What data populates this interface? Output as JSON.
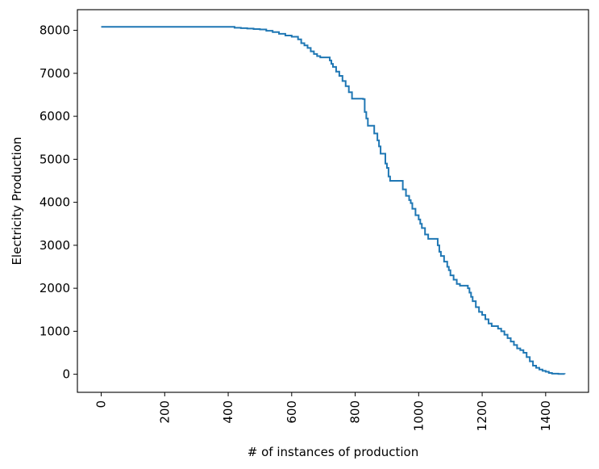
{
  "chart_data": {
    "type": "line",
    "title": "",
    "xlabel": "# of instances of production",
    "ylabel": "Electricity Production",
    "xlim": [
      -75,
      1535
    ],
    "ylim": [
      -420,
      8480
    ],
    "xticks": [
      0,
      200,
      400,
      600,
      800,
      1000,
      1200,
      1400
    ],
    "yticks": [
      0,
      1000,
      2000,
      3000,
      4000,
      5000,
      6000,
      7000,
      8000
    ],
    "x_tick_rotation": 90,
    "grid": false,
    "legend": "none",
    "series": [
      {
        "color": "#1f77b4",
        "style": "step",
        "x": [
          0,
          380,
          420,
          440,
          460,
          480,
          500,
          520,
          540,
          560,
          580,
          600,
          610,
          620,
          630,
          640,
          650,
          660,
          670,
          680,
          690,
          700,
          710,
          720,
          725,
          730,
          740,
          750,
          760,
          770,
          780,
          790,
          800,
          810,
          820,
          825,
          830,
          835,
          840,
          845,
          850,
          860,
          870,
          875,
          880,
          890,
          895,
          900,
          905,
          910,
          920,
          930,
          940,
          950,
          960,
          970,
          975,
          980,
          990,
          1000,
          1005,
          1010,
          1020,
          1030,
          1040,
          1050,
          1060,
          1065,
          1070,
          1080,
          1090,
          1095,
          1100,
          1110,
          1120,
          1130,
          1140,
          1150,
          1155,
          1160,
          1165,
          1170,
          1180,
          1190,
          1200,
          1210,
          1220,
          1230,
          1240,
          1250,
          1260,
          1270,
          1280,
          1290,
          1300,
          1310,
          1320,
          1330,
          1340,
          1350,
          1360,
          1370,
          1380,
          1390,
          1400,
          1410,
          1420,
          1440,
          1460
        ],
        "y": [
          8080,
          8080,
          8060,
          8050,
          8040,
          8030,
          8020,
          7990,
          7960,
          7920,
          7880,
          7850,
          7850,
          7790,
          7700,
          7650,
          7590,
          7510,
          7450,
          7400,
          7370,
          7370,
          7370,
          7300,
          7220,
          7150,
          7040,
          6940,
          6820,
          6700,
          6560,
          6410,
          6410,
          6410,
          6410,
          6400,
          6100,
          5950,
          5780,
          5780,
          5780,
          5600,
          5440,
          5300,
          5130,
          5130,
          4900,
          4800,
          4600,
          4500,
          4500,
          4500,
          4500,
          4300,
          4150,
          4050,
          3980,
          3850,
          3700,
          3600,
          3500,
          3400,
          3250,
          3150,
          3150,
          3150,
          3000,
          2850,
          2750,
          2620,
          2500,
          2420,
          2300,
          2200,
          2100,
          2060,
          2060,
          2060,
          2000,
          1900,
          1800,
          1700,
          1560,
          1450,
          1380,
          1280,
          1180,
          1120,
          1120,
          1060,
          1000,
          920,
          840,
          760,
          680,
          600,
          560,
          500,
          400,
          300,
          200,
          150,
          110,
          80,
          60,
          30,
          15,
          8,
          5
        ]
      }
    ]
  }
}
